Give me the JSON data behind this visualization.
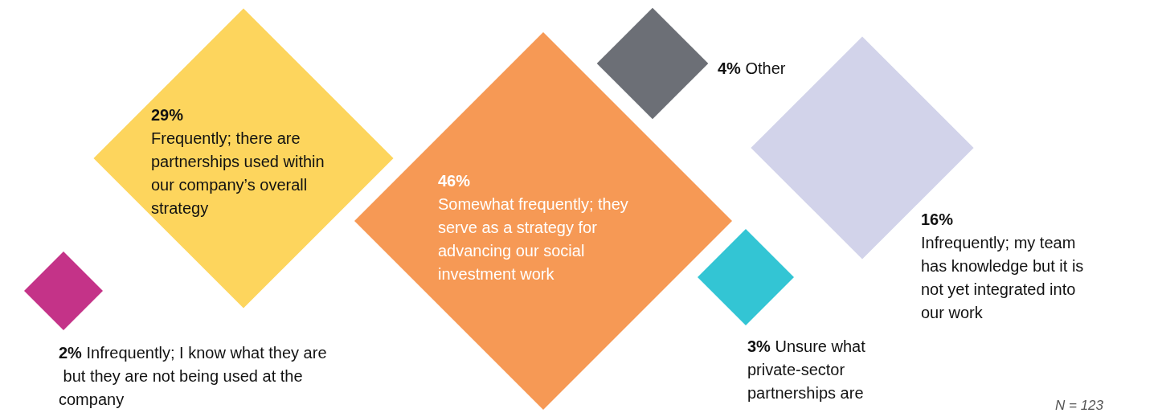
{
  "chart_data": {
    "type": "other",
    "categories": [
      "Frequently; there are partnerships used within our company’s overall strategy",
      "Somewhat frequently; they serve as a strategy for advancing our social investment work",
      "Other",
      "Infrequently; my team has knowledge but it is not yet integrated into our work",
      "Infrequently; I know what they are but they are not being used at the company",
      "Unsure what private-sector partnerships are"
    ],
    "values": [
      29,
      46,
      4,
      16,
      2,
      3
    ],
    "value_labels": [
      "29%",
      "46%",
      "4%",
      "16%",
      "2%",
      "3%"
    ],
    "colors": [
      "#fdcb34",
      "#f4802b",
      "#474b54",
      "#c7c8e5",
      "#b5006a",
      "#00b6c9"
    ],
    "annotations": [
      "N = 123"
    ]
  }
}
